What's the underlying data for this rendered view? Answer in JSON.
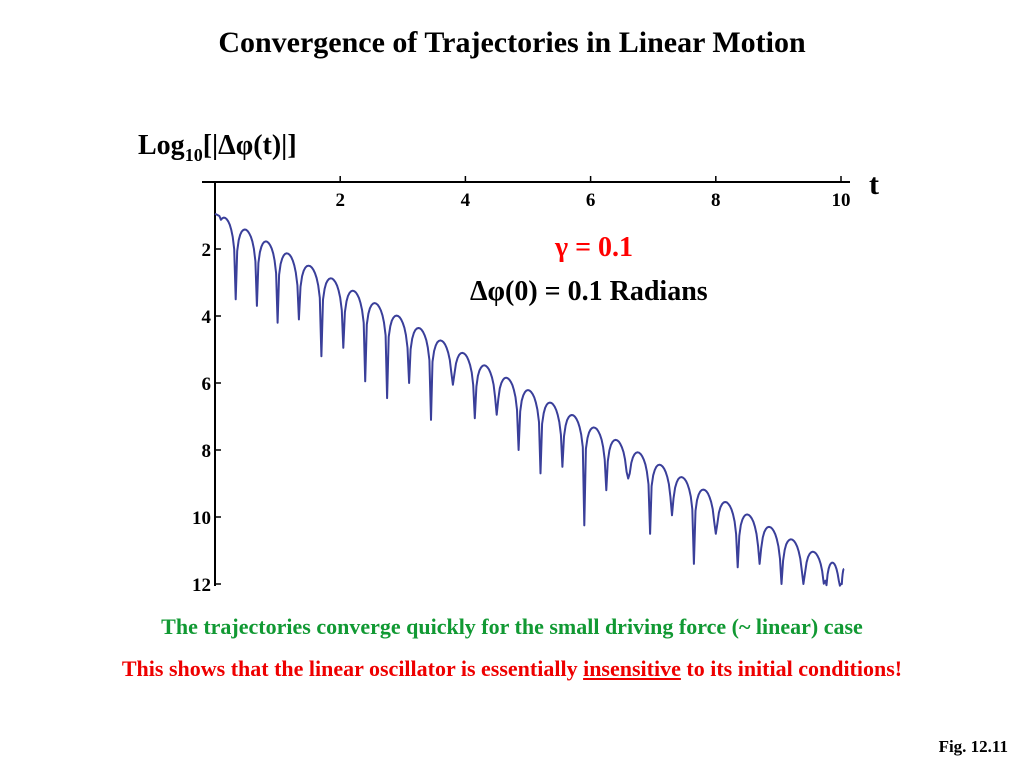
{
  "title": "Convergence of Trajectories in Linear Motion",
  "annotations": {
    "gamma": "γ = 0.1",
    "initial": "Δφ(0) = 0.1 Radians"
  },
  "captions": {
    "line1": "The trajectories converge quickly for the small driving force (~ linear) case",
    "line2_pre": "This shows that the linear oscillator is essentially ",
    "line2_emph": "insensitive",
    "line2_post": " to its initial conditions!"
  },
  "figure_label": "Fig. 12.11",
  "chart_data": {
    "type": "line",
    "title": "Convergence of Trajectories in Linear Motion",
    "ylabel_prefix": "Log",
    "ylabel_sub": "10",
    "ylabel_suffix": "[|Δφ(t)|]",
    "xlabel": "t",
    "xlim": [
      0,
      10.4
    ],
    "ylim": [
      -12,
      0
    ],
    "x_ticks": [
      2,
      4,
      6,
      8,
      10
    ],
    "x_tick_labels": [
      "2",
      "4",
      "6",
      "8",
      "10"
    ],
    "y_ticks": [
      -2,
      -4,
      -6,
      -8,
      -10,
      -12
    ],
    "y_tick_labels": [
      "2",
      "4",
      "6",
      "8",
      "10",
      "12"
    ],
    "y_tick_prefix": "",
    "grid": false,
    "series": [
      {
        "color": "#3a3f9a",
        "envelope_start": -0.9,
        "envelope_slope": -1.06,
        "oscillation_period": 0.35,
        "dips": [
          [
            0.33,
            -3.5
          ],
          [
            0.67,
            -3.7
          ],
          [
            1.0,
            -4.2
          ],
          [
            1.34,
            -4.1
          ],
          [
            1.7,
            -5.2
          ],
          [
            2.05,
            -4.95
          ],
          [
            2.4,
            -5.95
          ],
          [
            2.75,
            -6.45
          ],
          [
            3.1,
            -6.0
          ],
          [
            3.45,
            -7.1
          ],
          [
            3.8,
            -6.05
          ],
          [
            4.15,
            -7.05
          ],
          [
            4.5,
            -6.95
          ],
          [
            4.85,
            -8.0
          ],
          [
            5.2,
            -8.7
          ],
          [
            5.55,
            -8.5
          ],
          [
            5.9,
            -10.25
          ],
          [
            6.25,
            -9.2
          ],
          [
            6.6,
            -8.85
          ],
          [
            6.95,
            -10.5
          ],
          [
            7.3,
            -9.95
          ],
          [
            7.65,
            -11.4
          ],
          [
            8.0,
            -10.5
          ],
          [
            8.35,
            -11.5
          ],
          [
            8.7,
            -11.4
          ],
          [
            9.05,
            -12.0
          ],
          [
            9.4,
            -12.0
          ],
          [
            9.75,
            -11.9
          ],
          [
            10.0,
            -12.0
          ]
        ],
        "end_x": 10.0
      }
    ]
  }
}
